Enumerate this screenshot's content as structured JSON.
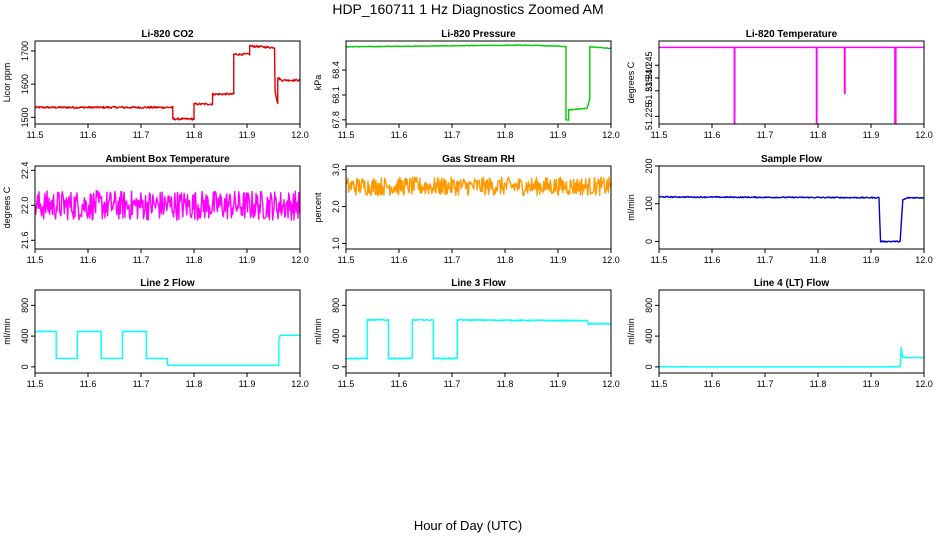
{
  "figure": {
    "title": "HDP_160711  1 Hz Diagnostics Zoomed AM",
    "xlabel": "Hour of Day (UTC)"
  },
  "chart_data": [
    {
      "type": "line",
      "title": "Li-820 CO2",
      "ylabel": "Licor ppm",
      "color": "#e00000",
      "xlim": [
        11.5,
        12.0
      ],
      "ylim": [
        1480,
        1730
      ],
      "xticks": [
        11.5,
        11.6,
        11.7,
        11.8,
        11.9,
        12.0
      ],
      "xtick_labels": [
        "11.5",
        "11.6",
        "11.7",
        "11.8",
        "11.9",
        "12.0"
      ],
      "yticks": [
        1500,
        1600,
        1700
      ],
      "ytick_labels": [
        "1500",
        "1600",
        "1700"
      ],
      "x": [
        11.5,
        11.76,
        11.76,
        11.8,
        11.8,
        11.835,
        11.835,
        11.875,
        11.875,
        11.905,
        11.905,
        11.952,
        11.953,
        11.958,
        11.958,
        11.965,
        12.0
      ],
      "y": [
        1530,
        1530,
        1495,
        1495,
        1540,
        1540,
        1570,
        1570,
        1690,
        1690,
        1715,
        1710,
        1580,
        1540,
        1620,
        1612,
        1612
      ],
      "noise": 3
    },
    {
      "type": "line",
      "title": "Li-820 Pressure",
      "ylabel": "kPa",
      "color": "#00cc00",
      "xlim": [
        11.5,
        12.0
      ],
      "ylim": [
        67.75,
        68.75
      ],
      "xticks": [
        11.5,
        11.6,
        11.7,
        11.8,
        11.9,
        12.0
      ],
      "xtick_labels": [
        "11.5",
        "11.6",
        "11.7",
        "11.8",
        "11.9",
        "12.0"
      ],
      "yticks": [
        67.8,
        68.1,
        68.4
      ],
      "ytick_labels": [
        "67.8",
        "68.1",
        "68.4"
      ],
      "x": [
        11.5,
        11.83,
        11.9,
        11.915,
        11.915,
        11.92,
        11.92,
        11.955,
        11.96,
        11.96,
        11.965,
        12.0
      ],
      "y": [
        68.68,
        68.7,
        68.69,
        68.68,
        67.8,
        67.8,
        67.92,
        67.94,
        68.05,
        68.68,
        68.68,
        68.66
      ],
      "noise": 0.004
    },
    {
      "type": "line",
      "title": "Li-820 Temperature",
      "ylabel": "degrees C",
      "color": "#ff00ff",
      "xlim": [
        11.5,
        12.0
      ],
      "ylim": [
        51.222,
        51.2545
      ],
      "xticks": [
        11.5,
        11.6,
        11.7,
        11.8,
        11.9,
        12.0
      ],
      "xtick_labels": [
        "11.5",
        "11.6",
        "11.7",
        "11.8",
        "11.9",
        "12.0"
      ],
      "yticks": [
        51.225,
        51.235,
        51.24,
        51.245
      ],
      "ytick_labels": [
        "51.225",
        "51.235",
        "51.240",
        "51.245"
      ],
      "x": [
        11.5,
        11.642,
        11.642,
        11.643,
        11.643,
        11.797,
        11.797,
        11.798,
        11.798,
        11.85,
        11.85,
        11.851,
        11.851,
        11.945,
        11.945,
        11.947,
        11.947,
        12.0
      ],
      "y": [
        51.252,
        51.252,
        51.222,
        51.222,
        51.252,
        51.252,
        51.222,
        51.222,
        51.252,
        51.252,
        51.234,
        51.234,
        51.252,
        51.252,
        51.222,
        51.222,
        51.252,
        51.252
      ],
      "noise": 0
    },
    {
      "type": "line",
      "title": "Ambient Box Temperature",
      "ylabel": "degrees C",
      "color": "#ff00ff",
      "xlim": [
        11.5,
        12.0
      ],
      "ylim": [
        21.5,
        22.45
      ],
      "xticks": [
        11.5,
        11.6,
        11.7,
        11.8,
        11.9,
        12.0
      ],
      "xtick_labels": [
        "11.5",
        "11.6",
        "11.7",
        "11.8",
        "11.9",
        "12.0"
      ],
      "yticks": [
        21.6,
        22.0,
        22.4
      ],
      "ytick_labels": [
        "21.6",
        "22.0",
        "22.4"
      ],
      "x": [
        11.5,
        12.0
      ],
      "y": [
        22.0,
        22.0
      ],
      "noise": 0.17
    },
    {
      "type": "line",
      "title": "Gas Stream RH",
      "ylabel": "percent",
      "color": "#ff9900",
      "xlim": [
        11.5,
        12.0
      ],
      "ylim": [
        0.85,
        3.1
      ],
      "xticks": [
        11.5,
        11.6,
        11.7,
        11.8,
        11.9,
        12.0
      ],
      "xtick_labels": [
        "11.5",
        "11.6",
        "11.7",
        "11.8",
        "11.9",
        "12.0"
      ],
      "yticks": [
        1.0,
        2.0,
        3.0
      ],
      "ytick_labels": [
        "1.0",
        "2.0",
        "3.0"
      ],
      "x": [
        11.5,
        12.0
      ],
      "y": [
        2.55,
        2.55
      ],
      "noise": 0.25
    },
    {
      "type": "line",
      "title": "Sample Flow",
      "ylabel": "ml/min",
      "color": "#0000cc",
      "xlim": [
        11.5,
        12.0
      ],
      "ylim": [
        -20,
        200
      ],
      "xticks": [
        11.5,
        11.6,
        11.7,
        11.8,
        11.9,
        12.0
      ],
      "xtick_labels": [
        "11.5",
        "11.6",
        "11.7",
        "11.8",
        "11.9",
        "12.0"
      ],
      "yticks": [
        0,
        100,
        200
      ],
      "ytick_labels": [
        "0",
        "100",
        "200"
      ],
      "x": [
        11.5,
        11.915,
        11.915,
        11.918,
        11.918,
        11.955,
        11.955,
        11.96,
        11.96,
        11.97,
        11.97,
        12.0
      ],
      "y": [
        118,
        116,
        116,
        0,
        0,
        0,
        0,
        110,
        110,
        116,
        116,
        116
      ],
      "noise": 1.5
    },
    {
      "type": "line",
      "title": "Line 2 Flow",
      "ylabel": "ml/min",
      "color": "#00ffff",
      "xlim": [
        11.5,
        12.0
      ],
      "ylim": [
        -80,
        1000
      ],
      "xticks": [
        11.5,
        11.6,
        11.7,
        11.8,
        11.9,
        12.0
      ],
      "xtick_labels": [
        "11.5",
        "11.6",
        "11.7",
        "11.8",
        "11.9",
        "12.0"
      ],
      "yticks": [
        0,
        400,
        800
      ],
      "ytick_labels": [
        "0",
        "400",
        "800"
      ],
      "x": [
        11.5,
        11.54,
        11.54,
        11.58,
        11.58,
        11.625,
        11.625,
        11.665,
        11.665,
        11.71,
        11.71,
        11.75,
        11.75,
        11.96,
        11.96,
        11.962,
        11.962,
        12.0
      ],
      "y": [
        460,
        460,
        110,
        110,
        460,
        460,
        110,
        110,
        460,
        460,
        110,
        110,
        20,
        20,
        340,
        380,
        410,
        410
      ],
      "noise": 0
    },
    {
      "type": "line",
      "title": "Line 3 Flow",
      "ylabel": "ml/min",
      "color": "#00ffff",
      "xlim": [
        11.5,
        12.0
      ],
      "ylim": [
        -80,
        1000
      ],
      "xticks": [
        11.5,
        11.6,
        11.7,
        11.8,
        11.9,
        12.0
      ],
      "xtick_labels": [
        "11.5",
        "11.6",
        "11.7",
        "11.8",
        "11.9",
        "12.0"
      ],
      "yticks": [
        0,
        400,
        800
      ],
      "ytick_labels": [
        "0",
        "400",
        "800"
      ],
      "x": [
        11.5,
        11.54,
        11.54,
        11.58,
        11.58,
        11.625,
        11.625,
        11.665,
        11.665,
        11.71,
        11.71,
        11.955,
        11.955,
        11.958,
        11.958,
        12.0
      ],
      "y": [
        110,
        110,
        610,
        610,
        110,
        110,
        610,
        610,
        110,
        110,
        610,
        600,
        600,
        540,
        560,
        560
      ],
      "noise": 8
    },
    {
      "type": "line",
      "title": "Line 4 (LT) Flow",
      "ylabel": "ml/min",
      "color": "#00ffff",
      "xlim": [
        11.5,
        12.0
      ],
      "ylim": [
        -80,
        1000
      ],
      "xticks": [
        11.5,
        11.6,
        11.7,
        11.8,
        11.9,
        12.0
      ],
      "xtick_labels": [
        "11.5",
        "11.6",
        "11.7",
        "11.8",
        "11.9",
        "12.0"
      ],
      "yticks": [
        0,
        400,
        800
      ],
      "ytick_labels": [
        "0",
        "400",
        "800"
      ],
      "x": [
        11.5,
        11.955,
        11.955,
        11.957,
        11.957,
        11.96,
        11.96,
        12.0
      ],
      "y": [
        0,
        0,
        0,
        250,
        250,
        120,
        120,
        120
      ],
      "noise": 2
    }
  ]
}
